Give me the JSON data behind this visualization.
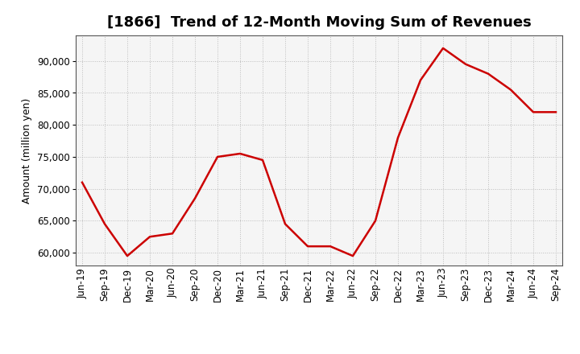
{
  "title": "[1866]  Trend of 12-Month Moving Sum of Revenues",
  "ylabel": "Amount (million yen)",
  "line_color": "#cc0000",
  "background_color": "#ffffff",
  "plot_bg_color": "#f5f5f5",
  "grid_color": "#bbbbbb",
  "labels": [
    "Jun-19",
    "Sep-19",
    "Dec-19",
    "Mar-20",
    "Jun-20",
    "Sep-20",
    "Dec-20",
    "Mar-21",
    "Jun-21",
    "Sep-21",
    "Dec-21",
    "Mar-22",
    "Jun-22",
    "Sep-22",
    "Dec-22",
    "Mar-23",
    "Jun-23",
    "Sep-23",
    "Dec-23",
    "Mar-24",
    "Jun-24",
    "Sep-24"
  ],
  "values": [
    71000,
    64500,
    59500,
    62500,
    63000,
    68500,
    75000,
    75500,
    74500,
    64500,
    61000,
    61000,
    59500,
    65000,
    78000,
    87000,
    92000,
    89500,
    88000,
    85500,
    82000,
    82000
  ],
  "ylim": [
    58000,
    94000
  ],
  "yticks": [
    60000,
    65000,
    70000,
    75000,
    80000,
    85000,
    90000
  ],
  "title_fontsize": 13,
  "axis_fontsize": 9,
  "tick_fontsize": 8.5,
  "line_width": 1.8
}
